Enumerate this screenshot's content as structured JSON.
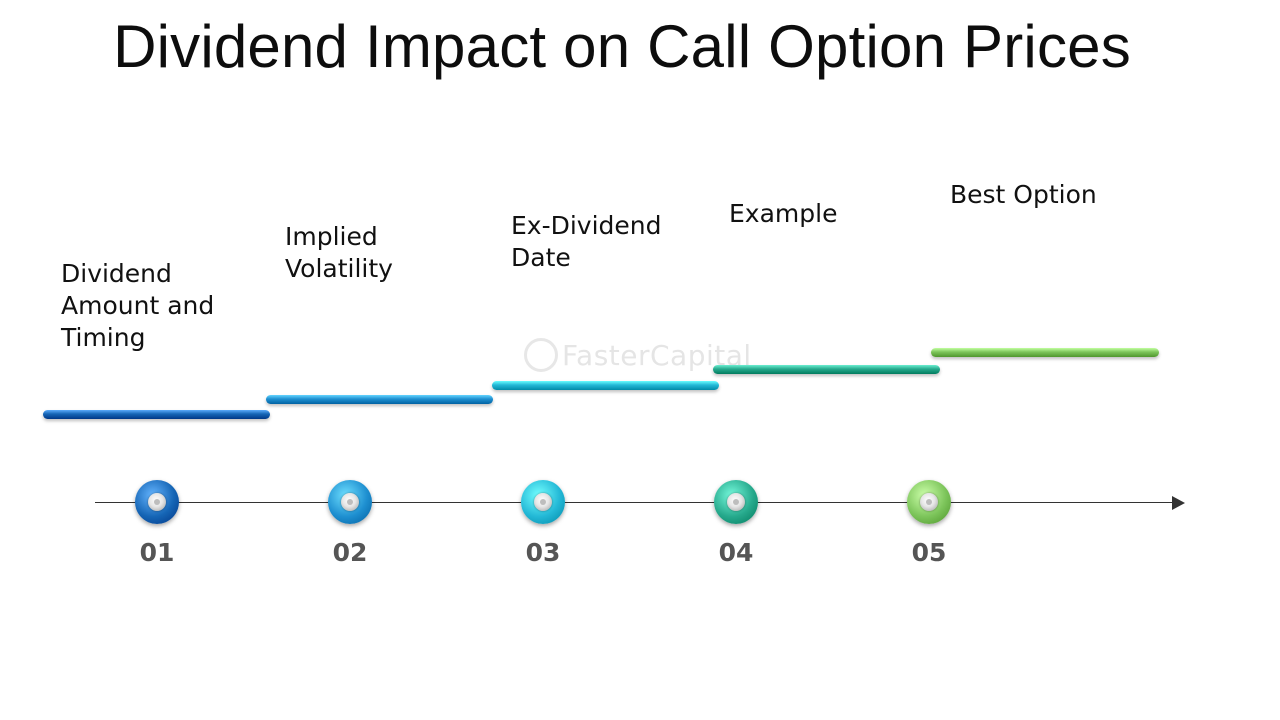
{
  "title": "Dividend Impact on Call Option Prices",
  "watermark": "FasterCapital",
  "steps": [
    {
      "number": "01",
      "label": "Dividend\nAmount and\nTiming",
      "color": "#1565b5"
    },
    {
      "number": "02",
      "label": "Implied\nVolatility",
      "color": "#1e8fd0"
    },
    {
      "number": "03",
      "label": "Ex-Dividend\nDate",
      "color": "#23b8d6"
    },
    {
      "number": "04",
      "label": "Example",
      "color": "#26a98c"
    },
    {
      "number": "05",
      "label": "Best Option",
      "color": "#7cc45a"
    }
  ]
}
